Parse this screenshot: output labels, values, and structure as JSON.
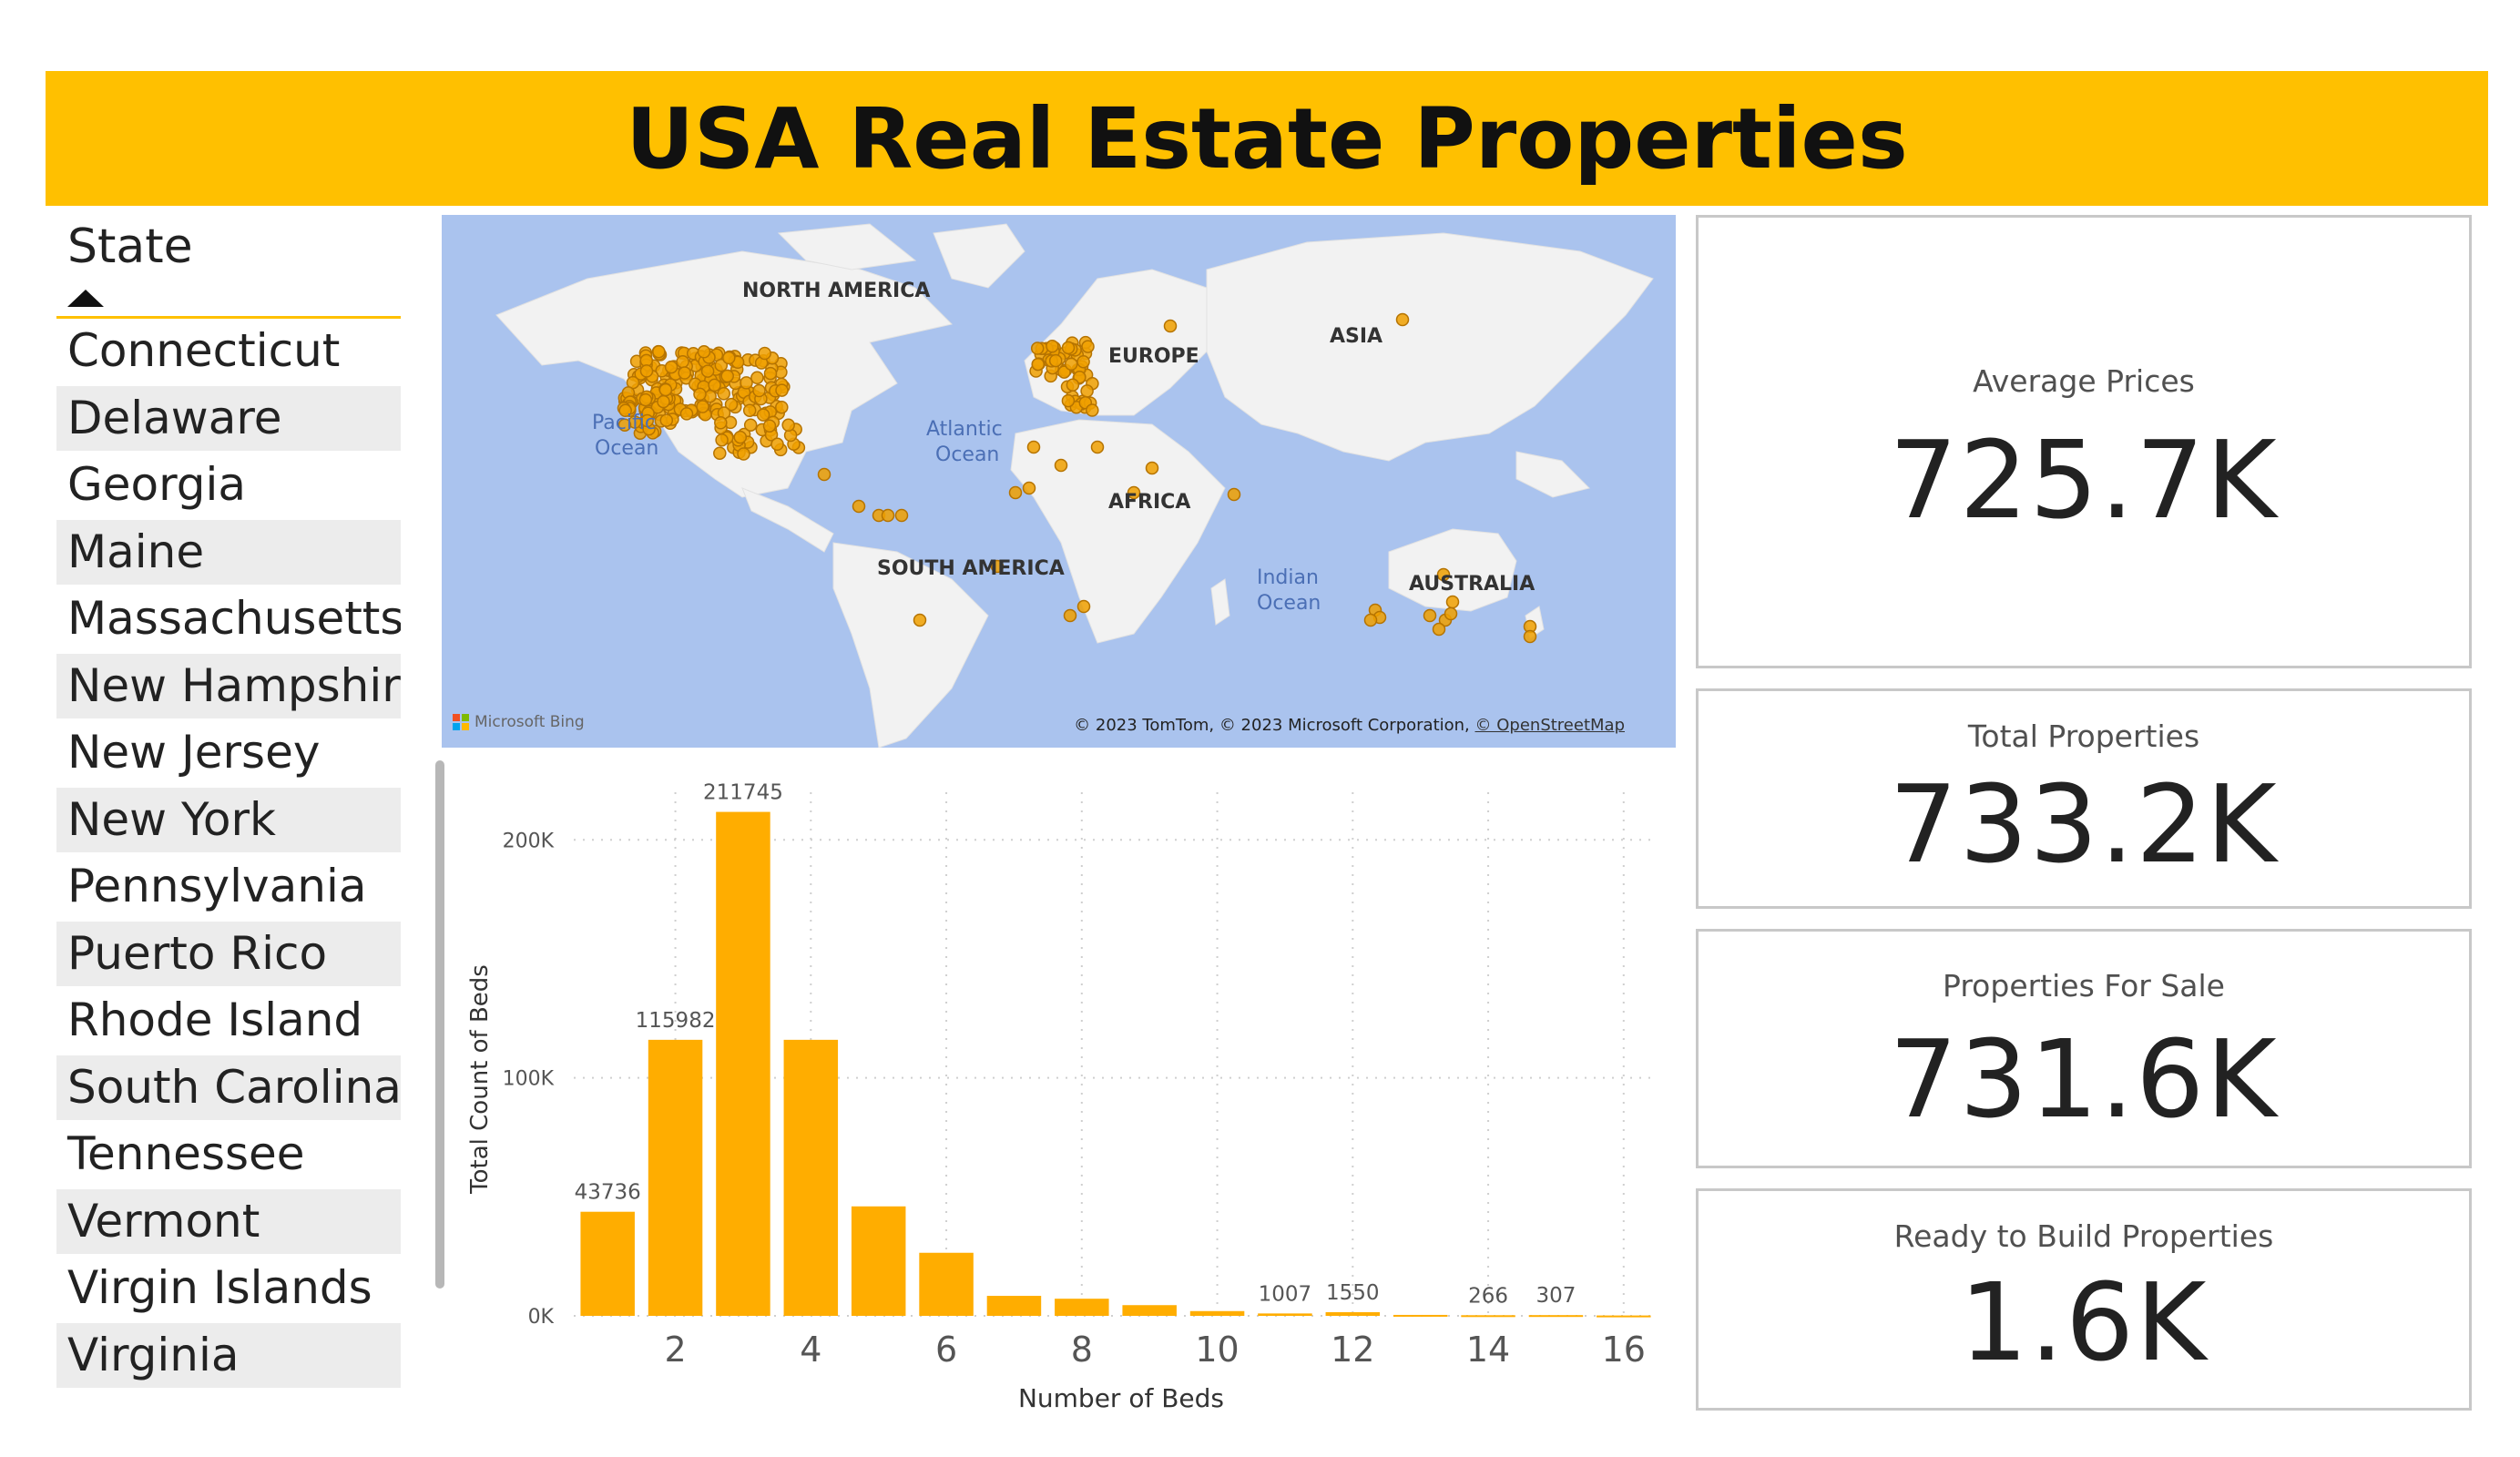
{
  "header": {
    "title": "USA Real Estate Properties",
    "color": "#ffc000"
  },
  "slicer": {
    "title": "State",
    "sort_icon": "sort-ascending-icon",
    "items": [
      "Connecticut",
      "Delaware",
      "Georgia",
      "Maine",
      "Massachusetts",
      "New Hampshire",
      "New Jersey",
      "New York",
      "Pennsylvania",
      "Puerto Rico",
      "Rhode Island",
      "South Carolina",
      "Tennessee",
      "Vermont",
      "Virgin Islands",
      "Virginia"
    ]
  },
  "map": {
    "continent_labels": [
      "NORTH AMERICA",
      "EUROPE",
      "ASIA",
      "AFRICA",
      "SOUTH AMERICA",
      "AUSTRALIA"
    ],
    "ocean_labels": [
      {
        "line1": "Pacific",
        "line2": "Ocean"
      },
      {
        "line1": "Atlantic",
        "line2": "Ocean"
      },
      {
        "line1": "Indian",
        "line2": "Ocean"
      }
    ],
    "bing_logo_text": "Microsoft Bing",
    "attribution": "© 2023 TomTom, © 2023 Microsoft Corporation,",
    "attribution_link": "© OpenStreetMap",
    "water_color": "#aac3ee",
    "land_color": "#f2f2f2",
    "marker_color": "#f0a000"
  },
  "chart_data": {
    "type": "bar",
    "xlabel": "Number of Beds",
    "ylabel": "Total Count of Beds",
    "x": [
      1,
      2,
      3,
      4,
      5,
      6,
      7,
      8,
      9,
      10,
      11,
      12,
      13,
      14,
      15,
      16
    ],
    "values": [
      43736,
      115982,
      211745,
      115982,
      46000,
      26500,
      8400,
      7200,
      4500,
      2000,
      1007,
      1550,
      400,
      266,
      307,
      150
    ],
    "data_labels": [
      {
        "x": 1,
        "text": "43736"
      },
      {
        "x": 2,
        "text": "115982"
      },
      {
        "x": 3,
        "text": "211745"
      },
      {
        "x": 11,
        "text": "1007"
      },
      {
        "x": 12,
        "text": "1550"
      },
      {
        "x": 14,
        "text": "266"
      },
      {
        "x": 15,
        "text": "307"
      }
    ],
    "x_ticks": [
      "2",
      "4",
      "6",
      "8",
      "10",
      "12",
      "14",
      "16"
    ],
    "y_ticks": [
      "0K",
      "100K",
      "200K"
    ],
    "ylim": [
      0,
      220000
    ],
    "grid": true,
    "bar_color": "#ffad00"
  },
  "cards": {
    "average_prices": {
      "label": "Average Prices",
      "value": "725.7K"
    },
    "total_properties": {
      "label": "Total Properties",
      "value": "733.2K"
    },
    "properties_for_sale": {
      "label": "Properties For Sale",
      "value": "731.6K"
    },
    "ready_to_build": {
      "label": "Ready to Build Properties",
      "value": "1.6K"
    }
  }
}
